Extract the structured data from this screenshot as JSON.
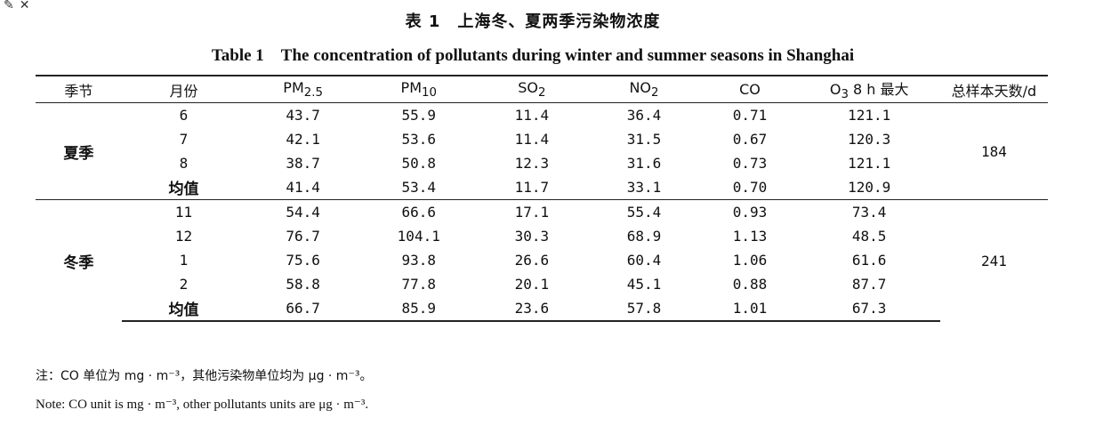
{
  "toolbar": {
    "edit_icon": "✎",
    "close_icon": "✕"
  },
  "title_cn": "表 1　上海冬、夏两季污染物浓度",
  "title_en": "Table 1　The concentration of pollutants during winter and summer seasons in Shanghai",
  "headers": [
    "季节",
    "月份",
    "PM",
    "PM",
    "SO",
    "NO",
    "CO",
    "O",
    "总样本天数/d"
  ],
  "header_subs": {
    "pm25": "2.5",
    "pm10": "10",
    "so2": "2",
    "no2": "2",
    "o3": "3",
    "o3_suffix": " 8 h 最大"
  },
  "summer": {
    "season": "夏季",
    "sample_days": "184",
    "rows": [
      [
        "6",
        "43.7",
        "55.9",
        "11.4",
        "36.4",
        "0.71",
        "121.1"
      ],
      [
        "7",
        "42.1",
        "53.6",
        "11.4",
        "31.5",
        "0.67",
        "120.3"
      ],
      [
        "8",
        "38.7",
        "50.8",
        "12.3",
        "31.6",
        "0.73",
        "121.1"
      ],
      [
        "均值",
        "41.4",
        "53.4",
        "11.7",
        "33.1",
        "0.70",
        "120.9"
      ]
    ]
  },
  "winter": {
    "season": "冬季",
    "sample_days": "241",
    "rows": [
      [
        "11",
        "54.4",
        "66.6",
        "17.1",
        "55.4",
        "0.93",
        "73.4"
      ],
      [
        "12",
        "76.7",
        "104.1",
        "30.3",
        "68.9",
        "1.13",
        "48.5"
      ],
      [
        "1",
        "75.6",
        "93.8",
        "26.6",
        "60.4",
        "1.06",
        "61.6"
      ],
      [
        "2",
        "58.8",
        "77.8",
        "20.1",
        "45.1",
        "0.88",
        "87.7"
      ],
      [
        "均值",
        "66.7",
        "85.9",
        "23.6",
        "57.8",
        "1.01",
        "67.3"
      ]
    ]
  },
  "notes": {
    "cn": "注：CO 单位为 mg · m⁻³，其他污染物单位均为 μg · m⁻³。",
    "en": "Note: CO unit is mg · m⁻³, other pollutants units are μg · m⁻³."
  }
}
